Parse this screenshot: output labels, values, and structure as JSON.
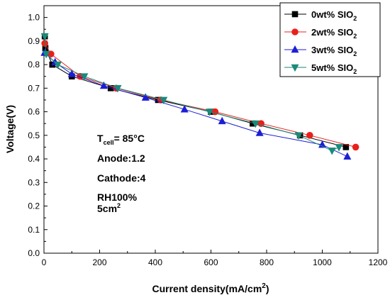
{
  "chart_data": {
    "type": "line",
    "title": "",
    "xlabel": "Current density(mA/cm",
    "xlabel_sup": "2",
    "xlabel_tail": ")",
    "ylabel": "Voltage(V)",
    "xlim": [
      0,
      1200
    ],
    "ylim": [
      0.0,
      1.05
    ],
    "x_ticks": [
      0,
      200,
      400,
      600,
      800,
      1000,
      1200
    ],
    "y_ticks": [
      0.0,
      0.1,
      0.2,
      0.3,
      0.4,
      0.5,
      0.6,
      0.7,
      0.8,
      0.9,
      1.0
    ],
    "x_tick_labels": [
      "0",
      "200",
      "400",
      "600",
      "800",
      "1000",
      "1200"
    ],
    "y_tick_labels": [
      "0.0",
      "0.1",
      "0.2",
      "0.3",
      "0.4",
      "0.5",
      "0.6",
      "0.7",
      "0.8",
      "0.9",
      "1.0"
    ],
    "grid": false,
    "legend_position": "top-right",
    "series": [
      {
        "name": "0wt% SIO",
        "name_sub": "2",
        "color": "#000000",
        "marker": "square",
        "points": [
          [
            3,
            0.92
          ],
          [
            5,
            0.87
          ],
          [
            30,
            0.8
          ],
          [
            100,
            0.75
          ],
          [
            240,
            0.7
          ],
          [
            410,
            0.65
          ],
          [
            600,
            0.6
          ],
          [
            750,
            0.55
          ],
          [
            920,
            0.5
          ],
          [
            1085,
            0.45
          ]
        ]
      },
      {
        "name": "2wt% SIO",
        "name_sub": "2",
        "color": "#e8201c",
        "marker": "circle",
        "points": [
          [
            3,
            0.89
          ],
          [
            25,
            0.845
          ],
          [
            130,
            0.75
          ],
          [
            260,
            0.7
          ],
          [
            420,
            0.65
          ],
          [
            615,
            0.6
          ],
          [
            780,
            0.55
          ],
          [
            955,
            0.5
          ],
          [
            1120,
            0.45
          ]
        ]
      },
      {
        "name": "3wt% SIO",
        "name_sub": "2",
        "color": "#1d1dd6",
        "marker": "triangle-up",
        "points": [
          [
            2,
            0.85
          ],
          [
            40,
            0.81
          ],
          [
            100,
            0.76
          ],
          [
            215,
            0.71
          ],
          [
            365,
            0.66
          ],
          [
            505,
            0.61
          ],
          [
            640,
            0.56
          ],
          [
            775,
            0.51
          ],
          [
            1000,
            0.46
          ],
          [
            1090,
            0.41
          ]
        ]
      },
      {
        "name": "5wt% SIO",
        "name_sub": "2",
        "color": "#1a8a7a",
        "marker": "triangle-down",
        "points": [
          [
            3,
            0.92
          ],
          [
            8,
            0.845
          ],
          [
            50,
            0.8
          ],
          [
            145,
            0.75
          ],
          [
            265,
            0.7
          ],
          [
            430,
            0.65
          ],
          [
            595,
            0.6
          ],
          [
            760,
            0.55
          ],
          [
            915,
            0.5
          ],
          [
            1035,
            0.435
          ],
          [
            1060,
            0.45
          ]
        ]
      }
    ],
    "annotation": {
      "line1_prefix": "T",
      "line1_sub": "cell",
      "line1_suffix": "= 85°C",
      "line2": "Anode:1.2",
      "line3": "Cathode:4",
      "line4": "RH100%",
      "line5_prefix": "5cm",
      "line5_sup": "2"
    }
  }
}
